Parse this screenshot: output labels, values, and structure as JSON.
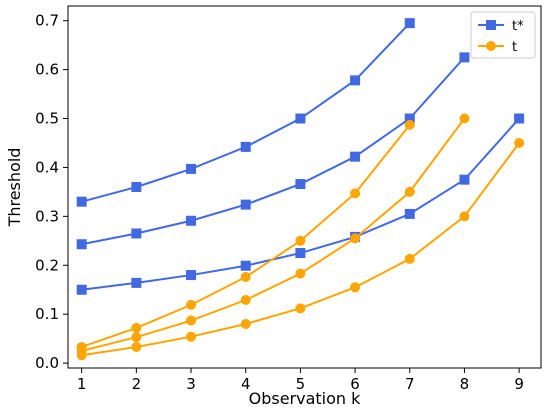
{
  "chart_data": {
    "type": "line",
    "title": "",
    "xlabel": "Observation k",
    "ylabel": "Threshold",
    "xlim": [
      0.75,
      9.4
    ],
    "ylim": [
      -0.01,
      0.73
    ],
    "xticks": [
      1,
      2,
      3,
      4,
      5,
      6,
      7,
      8,
      9
    ],
    "yticks": [
      0.0,
      0.1,
      0.2,
      0.3,
      0.4,
      0.5,
      0.6,
      0.7
    ],
    "grid": false,
    "legend_position": "top-right",
    "series": [
      {
        "name": "t*",
        "color": "#4169E1",
        "marker": "square",
        "lines": [
          {
            "x": [
              1,
              2,
              3,
              4,
              5,
              6,
              7
            ],
            "y": [
              0.33,
              0.36,
              0.397,
              0.442,
              0.5,
              0.578,
              0.695
            ]
          },
          {
            "x": [
              1,
              2,
              3,
              4,
              5,
              6,
              7,
              8
            ],
            "y": [
              0.243,
              0.265,
              0.291,
              0.324,
              0.366,
              0.422,
              0.5,
              0.625
            ]
          },
          {
            "x": [
              1,
              2,
              3,
              4,
              5,
              6,
              7,
              8,
              9
            ],
            "y": [
              0.15,
              0.164,
              0.18,
              0.199,
              0.225,
              0.258,
              0.305,
              0.375,
              0.5
            ]
          }
        ]
      },
      {
        "name": "t",
        "color": "#FFA500",
        "marker": "circle",
        "lines": [
          {
            "x": [
              1,
              2,
              3,
              4,
              5,
              6,
              7
            ],
            "y": [
              0.033,
              0.072,
              0.119,
              0.176,
              0.25,
              0.347,
              0.487
            ]
          },
          {
            "x": [
              1,
              2,
              3,
              4,
              5,
              6,
              7,
              8
            ],
            "y": [
              0.025,
              0.053,
              0.087,
              0.129,
              0.183,
              0.255,
              0.35,
              0.5
            ]
          },
          {
            "x": [
              1,
              2,
              3,
              4,
              5,
              6,
              7,
              8,
              9
            ],
            "y": [
              0.016,
              0.033,
              0.054,
              0.08,
              0.112,
              0.155,
              0.213,
              0.3,
              0.45
            ]
          }
        ]
      }
    ]
  }
}
